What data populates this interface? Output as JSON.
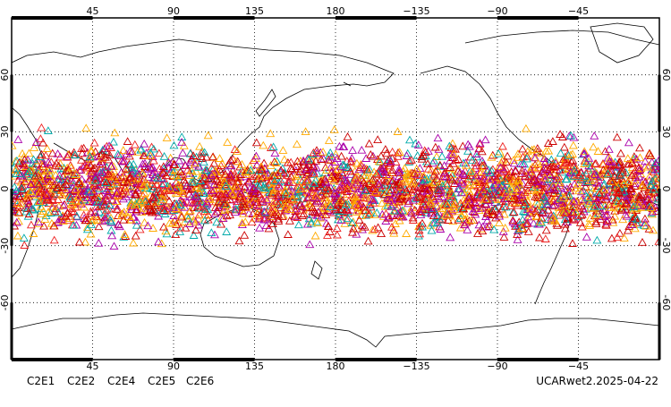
{
  "chart_data": {
    "type": "scatter",
    "map_projection": "equirectangular",
    "lon_range": [
      0,
      360
    ],
    "lat_range": [
      -90,
      90
    ],
    "grid": "dotted",
    "x_tick_labels": [
      "45",
      "90",
      "135",
      "180",
      "−135",
      "−90",
      "−45"
    ],
    "y_tick_labels": [
      "-60",
      "-30",
      "0",
      "30",
      "60"
    ],
    "marker": "triangle",
    "series": [
      {
        "name": "C2E1",
        "color": "#00AAAA"
      },
      {
        "name": "C2E2",
        "color": "#AA00AA"
      },
      {
        "name": "C2E4",
        "color": "#CC0000"
      },
      {
        "name": "C2E5",
        "color": "#EE2222"
      },
      {
        "name": "C2E6",
        "color": "#FFAA00"
      }
    ],
    "distribution_note": "",
    "caption": "UCARwet2.2025-04-22"
  }
}
